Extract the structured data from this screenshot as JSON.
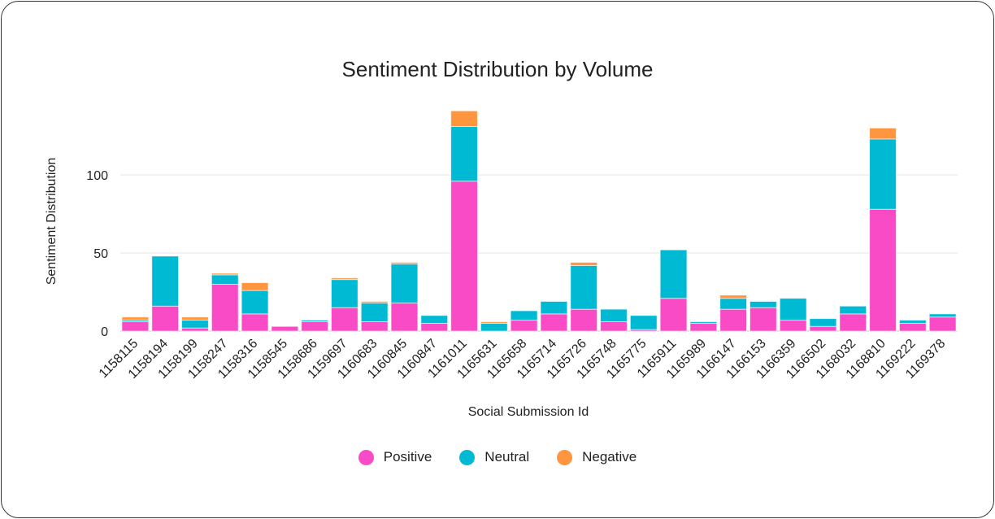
{
  "chart_data": {
    "type": "bar",
    "stacked": true,
    "title": "Sentiment Distribution by Volume",
    "xlabel": "Social Submission Id",
    "ylabel": "Sentiment Distribution",
    "ylim": [
      0,
      140
    ],
    "yticks": [
      0,
      50,
      100
    ],
    "grid": true,
    "legend_position": "bottom",
    "categories": [
      "1158115",
      "1158194",
      "1158199",
      "1158247",
      "1158316",
      "1158545",
      "1158686",
      "1159697",
      "1160683",
      "1160845",
      "1160847",
      "1161011",
      "1165631",
      "1165658",
      "1165714",
      "1165726",
      "1165748",
      "1165775",
      "1165911",
      "1165989",
      "1166147",
      "1166153",
      "1166359",
      "1166502",
      "1168032",
      "1168810",
      "1169222",
      "1169378"
    ],
    "series": [
      {
        "name": "Positive",
        "color": "#f94bc6",
        "values": [
          6,
          16,
          2,
          30,
          11,
          3,
          6,
          15,
          6,
          18,
          5,
          96,
          0,
          7,
          11,
          14,
          6,
          1,
          21,
          5,
          14,
          15,
          7,
          3,
          11,
          78,
          5,
          9
        ]
      },
      {
        "name": "Neutral",
        "color": "#00b9d3",
        "values": [
          1,
          32,
          5,
          6,
          15,
          0,
          1,
          18,
          12,
          25,
          5,
          35,
          5,
          6,
          8,
          28,
          8,
          9,
          31,
          1,
          7,
          4,
          14,
          5,
          5,
          45,
          2,
          2
        ]
      },
      {
        "name": "Negative",
        "color": "#ff953f",
        "values": [
          2,
          0,
          2,
          1,
          5,
          0,
          0,
          1,
          1,
          1,
          0,
          10,
          1,
          0,
          0,
          2,
          0,
          0,
          0,
          0,
          2,
          0,
          0,
          0,
          0,
          7,
          0,
          0
        ]
      }
    ]
  }
}
